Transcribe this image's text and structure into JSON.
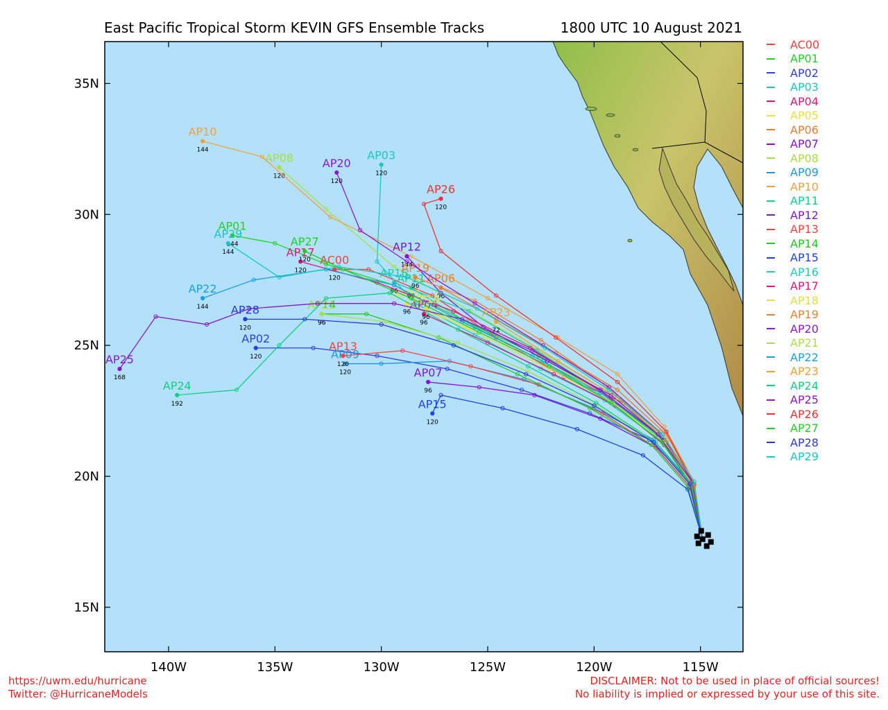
{
  "header": {
    "title": "East Pacific Tropical Storm KEVIN GFS Ensemble Tracks",
    "date": "1800 UTC 10 August 2021"
  },
  "map": {
    "ocean_color": "#b3e0fb",
    "lon_range": [
      -143,
      -113
    ],
    "lat_range": [
      13.3,
      36.6
    ],
    "lon_ticks": [
      {
        "value": -140,
        "label": "140W"
      },
      {
        "value": -135,
        "label": "135W"
      },
      {
        "value": -130,
        "label": "130W"
      },
      {
        "value": -125,
        "label": "125W"
      },
      {
        "value": -120,
        "label": "120W"
      },
      {
        "value": -115,
        "label": "115W"
      }
    ],
    "lat_ticks": [
      {
        "value": 15,
        "label": "15N"
      },
      {
        "value": 20,
        "label": "20N"
      },
      {
        "value": 25,
        "label": "25N"
      },
      {
        "value": 30,
        "label": "30N"
      },
      {
        "value": 35,
        "label": "35N"
      }
    ]
  },
  "storm_start": {
    "lon": -114.9,
    "lat": 17.6
  },
  "members": [
    {
      "id": "AC00",
      "color": "#ff3b3b",
      "track": [
        [
          -114.9,
          17.6
        ],
        [
          -115.4,
          19.6
        ],
        [
          -116.6,
          21.3
        ],
        [
          -118.6,
          22.8
        ],
        [
          -121.4,
          23.8
        ],
        [
          -124.6,
          25.3
        ],
        [
          -127.6,
          26.9
        ],
        [
          -130.6,
          27.9
        ],
        [
          -132.2,
          27.9
        ]
      ],
      "end_hour": "120"
    },
    {
      "id": "AP01",
      "color": "#1fd31f",
      "track": [
        [
          -114.9,
          17.6
        ],
        [
          -115.5,
          19.8
        ],
        [
          -117,
          21.5
        ],
        [
          -119.6,
          23.2
        ],
        [
          -122.6,
          24.6
        ],
        [
          -126,
          25.9
        ],
        [
          -129.4,
          27.3
        ],
        [
          -132.6,
          28.1
        ],
        [
          -135,
          28.9
        ],
        [
          -137,
          29.2
        ]
      ],
      "end_hour": "144"
    },
    {
      "id": "AP02",
      "color": "#2a3fe6",
      "track": [
        [
          -114.9,
          17.6
        ],
        [
          -115.6,
          19.9
        ],
        [
          -117.4,
          21.4
        ],
        [
          -120.2,
          22.4
        ],
        [
          -123.4,
          23.3
        ],
        [
          -126.9,
          24.1
        ],
        [
          -130.2,
          24.6
        ],
        [
          -133.2,
          24.9
        ],
        [
          -135.9,
          24.9
        ]
      ],
      "end_hour": "120"
    },
    {
      "id": "AP03",
      "color": "#1ac8c0",
      "track": [
        [
          -114.9,
          17.6
        ],
        [
          -115.4,
          19.7
        ],
        [
          -116.9,
          21.4
        ],
        [
          -119.5,
          22.9
        ],
        [
          -122.5,
          24.1
        ],
        [
          -125.6,
          25.4
        ],
        [
          -128.4,
          26.6
        ],
        [
          -130.2,
          28.2
        ],
        [
          -130,
          31.9
        ]
      ],
      "end_hour": "120"
    },
    {
      "id": "AP04",
      "color": "#e0147a",
      "track": [
        [
          -114.9,
          17.6
        ],
        [
          -115.3,
          19.6
        ],
        [
          -116.7,
          21.2
        ],
        [
          -119,
          22.7
        ],
        [
          -121.9,
          23.9
        ],
        [
          -125,
          25.1
        ],
        [
          -128,
          26.2
        ]
      ],
      "end_hour": "96"
    },
    {
      "id": "AP05",
      "color": "#e6e040",
      "track": [
        [
          -114.9,
          17.6
        ],
        [
          -115.4,
          19.8
        ],
        [
          -117,
          21.6
        ],
        [
          -119.8,
          23.3
        ],
        [
          -122.9,
          24.6
        ],
        [
          -126,
          25.7
        ],
        [
          -128.8,
          26.6
        ]
      ],
      "end_hour": "96"
    },
    {
      "id": "AP06",
      "color": "#f07a28",
      "track": [
        [
          -114.9,
          17.6
        ],
        [
          -115.3,
          19.7
        ],
        [
          -116.6,
          21.6
        ],
        [
          -118.9,
          23.3
        ],
        [
          -121.8,
          24.7
        ],
        [
          -124.6,
          26
        ],
        [
          -127.2,
          27.2
        ]
      ],
      "end_hour": "96"
    },
    {
      "id": "AP07",
      "color": "#8a10d8",
      "track": [
        [
          -114.9,
          17.6
        ],
        [
          -115.5,
          19.6
        ],
        [
          -117.1,
          21.1
        ],
        [
          -119.7,
          22.2
        ],
        [
          -122.8,
          23.1
        ],
        [
          -125.4,
          23.4
        ],
        [
          -127.8,
          23.6
        ]
      ],
      "end_hour": "96"
    },
    {
      "id": "AP08",
      "color": "#a8e040",
      "track": [
        [
          -114.9,
          17.6
        ],
        [
          -115.4,
          19.8
        ],
        [
          -116.9,
          21.6
        ],
        [
          -119.5,
          23.3
        ],
        [
          -122.6,
          24.8
        ],
        [
          -125.8,
          26.3
        ],
        [
          -129.4,
          28
        ],
        [
          -132.6,
          30.2
        ],
        [
          -134.8,
          31.8
        ]
      ],
      "end_hour": "120"
    },
    {
      "id": "AP09",
      "color": "#1898e0",
      "track": [
        [
          -114.9,
          17.6
        ],
        [
          -115.5,
          19.8
        ],
        [
          -117.2,
          21.4
        ],
        [
          -120,
          22.6
        ],
        [
          -123.3,
          23.7
        ],
        [
          -126.8,
          24.4
        ],
        [
          -130,
          24.3
        ],
        [
          -131.7,
          24.3
        ]
      ],
      "end_hour": "120"
    },
    {
      "id": "AP10",
      "color": "#f0a040",
      "track": [
        [
          -114.9,
          17.6
        ],
        [
          -115.3,
          19.8
        ],
        [
          -116.7,
          21.9
        ],
        [
          -118.9,
          23.9
        ],
        [
          -121.7,
          25.3
        ],
        [
          -125,
          26.8
        ],
        [
          -128.6,
          28.4
        ],
        [
          -132.4,
          29.9
        ],
        [
          -135.6,
          32.2
        ],
        [
          -138.4,
          32.8
        ]
      ],
      "end_hour": "144"
    },
    {
      "id": "AP11",
      "color": "#10d090",
      "track": [
        [
          -114.9,
          17.6
        ],
        [
          -115.4,
          19.7
        ],
        [
          -116.8,
          21.4
        ],
        [
          -119.3,
          22.9
        ],
        [
          -122.4,
          24.4
        ],
        [
          -125.6,
          25.7
        ],
        [
          -128.6,
          27.2
        ]
      ],
      "end_hour": "96"
    },
    {
      "id": "AP12",
      "color": "#7a18d8",
      "track": [
        [
          -114.9,
          17.6
        ],
        [
          -115.3,
          19.7
        ],
        [
          -116.7,
          21.4
        ],
        [
          -119.2,
          23.1
        ],
        [
          -122.2,
          24.4
        ],
        [
          -125.2,
          25.7
        ],
        [
          -127.2,
          27
        ],
        [
          -128.8,
          28.4
        ]
      ],
      "end_hour": "144"
    },
    {
      "id": "AP13",
      "color": "#ff4040",
      "track": [
        [
          -114.9,
          17.6
        ],
        [
          -115.5,
          19.6
        ],
        [
          -117.1,
          21.1
        ],
        [
          -119.6,
          22.4
        ],
        [
          -122.6,
          23.5
        ],
        [
          -125.8,
          24.2
        ],
        [
          -129,
          24.8
        ],
        [
          -131.8,
          24.6
        ]
      ],
      "end_hour": "120"
    },
    {
      "id": "AP14",
      "color": "#20c820",
      "track": [
        [
          -114.9,
          17.6
        ],
        [
          -115.6,
          19.6
        ],
        [
          -117.3,
          21.2
        ],
        [
          -120.2,
          22.6
        ],
        [
          -123.6,
          23.9
        ],
        [
          -127.3,
          25.3
        ],
        [
          -130.7,
          26.2
        ],
        [
          -132.8,
          26.2
        ]
      ],
      "end_hour": "96"
    },
    {
      "id": "AP15",
      "color": "#2040e8",
      "track": [
        [
          -114.9,
          17.6
        ],
        [
          -115.6,
          19.5
        ],
        [
          -117.7,
          20.8
        ],
        [
          -120.8,
          21.8
        ],
        [
          -124.3,
          22.6
        ],
        [
          -127.2,
          23.1
        ],
        [
          -127.6,
          22.4
        ]
      ],
      "end_hour": "120"
    },
    {
      "id": "AP16",
      "color": "#20c8b8",
      "track": [
        [
          -114.9,
          17.6
        ],
        [
          -115.4,
          19.7
        ],
        [
          -116.9,
          21.5
        ],
        [
          -119.6,
          23.2
        ],
        [
          -122.7,
          24.8
        ],
        [
          -125.9,
          26.3
        ],
        [
          -129.4,
          27.4
        ]
      ],
      "end_hour": "96"
    },
    {
      "id": "AP17",
      "color": "#e0187a",
      "track": [
        [
          -114.9,
          17.6
        ],
        [
          -115.4,
          19.8
        ],
        [
          -117,
          21.6
        ],
        [
          -119.8,
          23.3
        ],
        [
          -123,
          24.9
        ],
        [
          -126.6,
          26.3
        ],
        [
          -130.2,
          27.4
        ],
        [
          -133.8,
          28.2
        ]
      ],
      "end_hour": "120"
    },
    {
      "id": "AP18",
      "color": "#e0e040",
      "track": [
        [
          -114.9,
          17.6
        ],
        [
          -115.3,
          19.6
        ],
        [
          -116.7,
          21.3
        ],
        [
          -119.1,
          22.8
        ],
        [
          -122.1,
          24.1
        ],
        [
          -125.1,
          25.3
        ],
        [
          -127.9,
          26.4
        ]
      ],
      "end_hour": "96"
    },
    {
      "id": "AP19",
      "color": "#f08030",
      "track": [
        [
          -114.9,
          17.6
        ],
        [
          -115.4,
          19.8
        ],
        [
          -116.9,
          21.7
        ],
        [
          -119.5,
          23.5
        ],
        [
          -122.5,
          25.2
        ],
        [
          -125.6,
          26.7
        ],
        [
          -128.4,
          27.6
        ]
      ],
      "end_hour": "96"
    },
    {
      "id": "AP20",
      "color": "#9018d0",
      "track": [
        [
          -114.9,
          17.6
        ],
        [
          -115.3,
          19.7
        ],
        [
          -116.8,
          21.6
        ],
        [
          -119.3,
          23.4
        ],
        [
          -122.4,
          25
        ],
        [
          -125.6,
          26.6
        ],
        [
          -128.8,
          28.2
        ],
        [
          -131,
          29.4
        ],
        [
          -132.1,
          31.6
        ]
      ],
      "end_hour": "120"
    },
    {
      "id": "AP21",
      "color": "#a8e048",
      "track": [
        [
          -114.9,
          17.6
        ],
        [
          -115.5,
          19.7
        ],
        [
          -117.1,
          21.3
        ],
        [
          -119.9,
          22.7
        ],
        [
          -123.1,
          24
        ],
        [
          -126.4,
          25.1
        ],
        [
          -129.8,
          25.9
        ],
        [
          -132.8,
          26.2
        ]
      ],
      "end_hour": "96"
    },
    {
      "id": "AP22",
      "color": "#18a0e0",
      "track": [
        [
          -114.9,
          17.6
        ],
        [
          -115.4,
          19.8
        ],
        [
          -117,
          21.6
        ],
        [
          -119.7,
          23.2
        ],
        [
          -122.9,
          24.6
        ],
        [
          -126.2,
          25.9
        ],
        [
          -129.4,
          27.3
        ],
        [
          -132.6,
          27.9
        ],
        [
          -136,
          27.5
        ],
        [
          -138.4,
          26.8
        ]
      ],
      "end_hour": "144"
    },
    {
      "id": "AP23",
      "color": "#f0a030",
      "track": [
        [
          -114.9,
          17.6
        ],
        [
          -115.3,
          19.6
        ],
        [
          -116.6,
          21.4
        ],
        [
          -118.9,
          23
        ],
        [
          -121.7,
          24.4
        ],
        [
          -124.6,
          25.9
        ]
      ],
      "end_hour": "72"
    },
    {
      "id": "AP24",
      "color": "#10d080",
      "track": [
        [
          -114.9,
          17.6
        ],
        [
          -115.5,
          19.7
        ],
        [
          -117.1,
          21.3
        ],
        [
          -119.9,
          22.8
        ],
        [
          -123.1,
          24.2
        ],
        [
          -126.4,
          25.6
        ],
        [
          -129.6,
          27
        ],
        [
          -132.6,
          26.8
        ],
        [
          -134.8,
          25
        ],
        [
          -136.8,
          23.3
        ],
        [
          -139.6,
          23.1
        ]
      ],
      "end_hour": "192"
    },
    {
      "id": "AP25",
      "color": "#8818c8",
      "track": [
        [
          -114.9,
          17.6
        ],
        [
          -115.4,
          19.8
        ],
        [
          -117,
          21.6
        ],
        [
          -119.7,
          23.3
        ],
        [
          -122.9,
          24.8
        ],
        [
          -126.2,
          26
        ],
        [
          -129.4,
          26.6
        ],
        [
          -133,
          26.6
        ],
        [
          -136.2,
          26.4
        ],
        [
          -138.2,
          25.8
        ],
        [
          -140.6,
          26.1
        ],
        [
          -142.3,
          24.1
        ]
      ],
      "end_hour": "168"
    },
    {
      "id": "AP26",
      "color": "#f03030",
      "track": [
        [
          -114.9,
          17.6
        ],
        [
          -115.3,
          19.7
        ],
        [
          -116.6,
          21.7
        ],
        [
          -118.9,
          23.6
        ],
        [
          -121.8,
          25.3
        ],
        [
          -124.6,
          26.9
        ],
        [
          -127.2,
          28.6
        ],
        [
          -128,
          30.4
        ],
        [
          -127.2,
          30.6
        ]
      ],
      "end_hour": "120"
    },
    {
      "id": "AP27",
      "color": "#20d020",
      "track": [
        [
          -114.9,
          17.6
        ],
        [
          -115.4,
          19.6
        ],
        [
          -116.8,
          21.3
        ],
        [
          -119.2,
          22.8
        ],
        [
          -122.1,
          24.2
        ],
        [
          -125.4,
          25.5
        ],
        [
          -128.6,
          26.8
        ],
        [
          -131.8,
          27.9
        ],
        [
          -133.6,
          28.6
        ]
      ],
      "end_hour": "120"
    },
    {
      "id": "AP28",
      "color": "#2838e0",
      "track": [
        [
          -114.9,
          17.6
        ],
        [
          -115.5,
          19.7
        ],
        [
          -117.2,
          21.3
        ],
        [
          -120,
          22.7
        ],
        [
          -123.2,
          23.9
        ],
        [
          -126.6,
          25
        ],
        [
          -130,
          25.8
        ],
        [
          -133.6,
          26
        ],
        [
          -136.4,
          26
        ]
      ],
      "end_hour": "120"
    },
    {
      "id": "AP29",
      "color": "#18c8c0",
      "track": [
        [
          -114.9,
          17.6
        ],
        [
          -115.3,
          19.8
        ],
        [
          -116.8,
          21.6
        ],
        [
          -119.3,
          23.3
        ],
        [
          -122.3,
          24.9
        ],
        [
          -125.5,
          26.4
        ],
        [
          -128.8,
          27.6
        ],
        [
          -132,
          28
        ],
        [
          -134.8,
          27.6
        ],
        [
          -137.2,
          28.9
        ]
      ],
      "end_hour": "144"
    }
  ],
  "footer": {
    "left_line1": "https://uwm.edu/hurricane",
    "left_line2": "Twitter: @HurricaneModels",
    "right_line1": "DISCLAIMER: Not to be used in place of official sources!",
    "right_line2": "No liability is implied or expressed by your use of this site."
  }
}
